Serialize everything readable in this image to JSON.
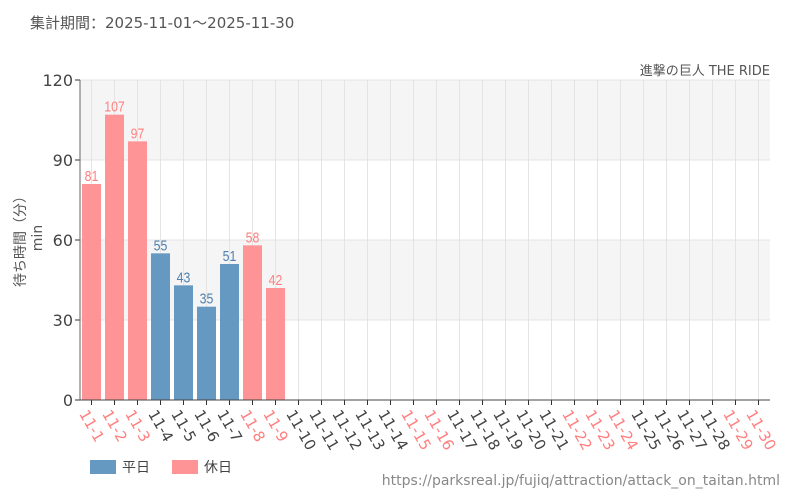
{
  "header": {
    "period": "集計期間：2025-11-01～2025-11-30",
    "attraction": "進撃の巨人 THE RIDE"
  },
  "footer": {
    "source": "https://parksreal.jp/fujiq/attraction/attack_on_taitan.html"
  },
  "legend": [
    {
      "label": "平日",
      "color": "#6699c2"
    },
    {
      "label": "休日",
      "color": "#ff9496"
    }
  ],
  "colors": {
    "weekday_bar": "#6699c2",
    "holiday_bar": "#ff9496",
    "weekday_text": "#4f81b0",
    "holiday_text": "#ff7f7f",
    "band": "#f5f5f5",
    "grid": "#e4e4e4"
  },
  "chart_data": {
    "type": "bar",
    "ylabel": "待ち時間（分）min",
    "ylim": [
      0,
      120
    ],
    "yticks": [
      0,
      30,
      60,
      90,
      120
    ],
    "grid": true,
    "legend_position": "bottom-left",
    "categories": [
      "11-1",
      "11-2",
      "11-3",
      "11-4",
      "11-5",
      "11-6",
      "11-7",
      "11-8",
      "11-9",
      "11-10",
      "11-11",
      "11-12",
      "11-13",
      "11-14",
      "11-15",
      "11-16",
      "11-17",
      "11-18",
      "11-19",
      "11-20",
      "11-21",
      "11-22",
      "11-23",
      "11-24",
      "11-25",
      "11-26",
      "11-27",
      "11-28",
      "11-29",
      "11-30"
    ],
    "holiday": [
      true,
      true,
      true,
      false,
      false,
      false,
      false,
      true,
      true,
      false,
      false,
      false,
      false,
      false,
      true,
      true,
      false,
      false,
      false,
      false,
      false,
      true,
      true,
      true,
      false,
      false,
      false,
      false,
      true,
      true
    ],
    "values": [
      81,
      107,
      97,
      55,
      43,
      35,
      51,
      58,
      42,
      null,
      null,
      null,
      null,
      null,
      null,
      null,
      null,
      null,
      null,
      null,
      null,
      null,
      null,
      null,
      null,
      null,
      null,
      null,
      null,
      null
    ]
  }
}
